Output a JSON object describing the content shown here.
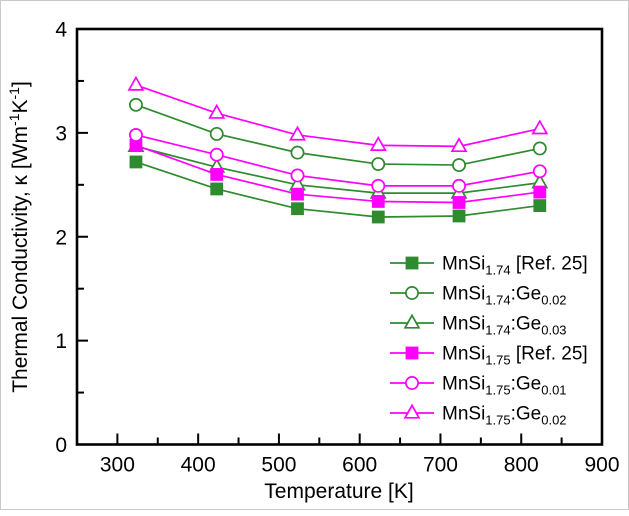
{
  "figure": {
    "background": "#ffffff",
    "axis_color": "#000000"
  },
  "chart_data": {
    "type": "line",
    "title": "",
    "xlabel": "Temperature [K]",
    "ylabel_rich": [
      {
        "t": "Thermal Conductivity, κ [Wm"
      },
      {
        "t": "-1",
        "sup": true
      },
      {
        "t": "K"
      },
      {
        "t": "-1",
        "sup": true
      },
      {
        "t": "]"
      }
    ],
    "xlim": [
      250,
      900
    ],
    "ylim": [
      0,
      4
    ],
    "x_major_ticks": [
      300,
      400,
      500,
      600,
      700,
      800,
      900
    ],
    "x_minor_ticks": [
      350,
      450,
      550,
      650,
      750,
      850
    ],
    "y_major_ticks": [
      0,
      1,
      2,
      3,
      4
    ],
    "y_minor_ticks": [
      0.5,
      1.5,
      2.5,
      3.5
    ],
    "grid": false,
    "legend_position": "lower-right-inside",
    "x": [
      323,
      423,
      523,
      623,
      723,
      823
    ],
    "series": [
      {
        "name": "MnSi1.74 [Ref. 25]",
        "label_rich": [
          {
            "t": "MnSi"
          },
          {
            "t": "1.74",
            "sub": true
          },
          {
            "t": " [Ref. 25]"
          }
        ],
        "color": "#2e8b2e",
        "marker": "square",
        "marker_fill": "filled",
        "values": [
          2.72,
          2.46,
          2.27,
          2.19,
          2.2,
          2.3
        ]
      },
      {
        "name": "MnSi1.74:Ge0.02",
        "label_rich": [
          {
            "t": "MnSi"
          },
          {
            "t": "1.74",
            "sub": true
          },
          {
            "t": ":Ge"
          },
          {
            "t": "0.02",
            "sub": true
          }
        ],
        "color": "#2e8b2e",
        "marker": "circle",
        "marker_fill": "open",
        "values": [
          3.27,
          2.99,
          2.81,
          2.7,
          2.69,
          2.85
        ]
      },
      {
        "name": "MnSi1.74:Ge0.03",
        "label_rich": [
          {
            "t": "MnSi"
          },
          {
            "t": "1.74",
            "sub": true
          },
          {
            "t": ":Ge"
          },
          {
            "t": "0.03",
            "sub": true
          }
        ],
        "color": "#2e8b2e",
        "marker": "triangle",
        "marker_fill": "open",
        "values": [
          2.87,
          2.67,
          2.5,
          2.42,
          2.42,
          2.52
        ]
      },
      {
        "name": "MnSi1.75 [Ref. 25]",
        "label_rich": [
          {
            "t": "MnSi"
          },
          {
            "t": "1.75",
            "sub": true
          },
          {
            "t": " [Ref. 25]"
          }
        ],
        "color": "#ff00ff",
        "marker": "square",
        "marker_fill": "filled",
        "values": [
          2.88,
          2.6,
          2.41,
          2.34,
          2.33,
          2.43
        ]
      },
      {
        "name": "MnSi1.75:Ge0.01",
        "label_rich": [
          {
            "t": "MnSi"
          },
          {
            "t": "1.75",
            "sub": true
          },
          {
            "t": ":Ge"
          },
          {
            "t": "0.01",
            "sub": true
          }
        ],
        "color": "#ff00ff",
        "marker": "circle",
        "marker_fill": "open",
        "values": [
          2.98,
          2.79,
          2.59,
          2.49,
          2.49,
          2.63
        ]
      },
      {
        "name": "MnSi1.75:Ge0.02",
        "label_rich": [
          {
            "t": "MnSi"
          },
          {
            "t": "1.75",
            "sub": true
          },
          {
            "t": ":Ge"
          },
          {
            "t": "0.02",
            "sub": true
          }
        ],
        "color": "#ff00ff",
        "marker": "triangle",
        "marker_fill": "open",
        "values": [
          3.46,
          3.19,
          2.98,
          2.88,
          2.87,
          3.04
        ]
      }
    ]
  }
}
